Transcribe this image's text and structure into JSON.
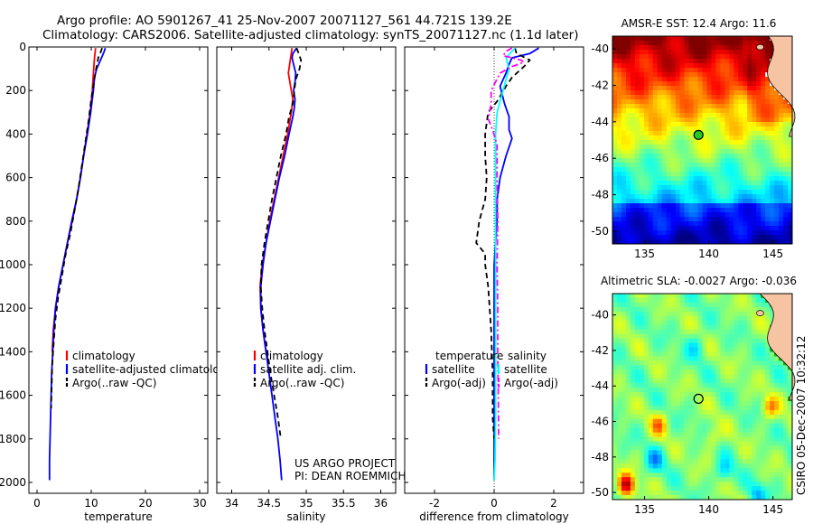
{
  "header": {
    "line1": "Argo profile: AO 5901267_41 25-Nov-2007 20071127_561 44.721S 139.2E",
    "line2": "Climatology: CARS2006. Satellite-adjusted climatology: synTS_20071127.nc (1.1d later)"
  },
  "credit": {
    "project": "US ARGO PROJECT",
    "pi": "PI: DEAN ROEMMICH",
    "stamp": "CSIRO 05-Dec-2007 10:32:12"
  },
  "colors": {
    "climatology": "#ff0000",
    "satellite": "#0000ff",
    "argo": "#000000",
    "temp_diff": "#0000ff",
    "sal_diff": "#00ffff",
    "sal_argo": "#ff00ff"
  },
  "chart_data": [
    {
      "id": "temperature",
      "type": "line",
      "xlabel": "temperature",
      "xlim": [
        -1.5,
        31.5
      ],
      "ylim": [
        2050,
        0
      ],
      "xticks": [
        0,
        10,
        20,
        30
      ],
      "xtick_labels": [
        "0",
        "10",
        "20",
        "30"
      ],
      "yticks": [
        0,
        200,
        400,
        600,
        800,
        1000,
        1200,
        1400,
        1600,
        1800,
        2000
      ],
      "ytick_labels": [
        "0",
        "200",
        "400",
        "600",
        "800",
        "1000",
        "1200",
        "1400",
        "1600",
        "1800",
        "2000"
      ],
      "legend": [
        "climatology",
        "satellite-adjusted climatology",
        "Argo(..raw -QC)"
      ],
      "series": [
        {
          "name": "climatology",
          "style": "solid",
          "points": [
            [
              10.8,
              5
            ],
            [
              10.6,
              50
            ],
            [
              10.4,
              120
            ],
            [
              10.2,
              200
            ],
            [
              9.8,
              300
            ],
            [
              9.2,
              400
            ],
            [
              8.6,
              500
            ],
            [
              8.0,
              600
            ],
            [
              7.3,
              700
            ],
            [
              6.5,
              800
            ],
            [
              5.6,
              900
            ],
            [
              4.8,
              1000
            ],
            [
              4.0,
              1100
            ],
            [
              3.4,
              1200
            ],
            [
              3.0,
              1300
            ],
            [
              2.8,
              1400
            ]
          ]
        },
        {
          "name": "satellite-adjusted climatology",
          "style": "solid",
          "points": [
            [
              12.6,
              5
            ],
            [
              12.4,
              20
            ],
            [
              11.9,
              50
            ],
            [
              11.0,
              100
            ],
            [
              10.6,
              140
            ],
            [
              10.4,
              200
            ],
            [
              9.9,
              300
            ],
            [
              9.3,
              400
            ],
            [
              8.6,
              500
            ],
            [
              8.0,
              600
            ],
            [
              7.3,
              700
            ],
            [
              6.4,
              800
            ],
            [
              5.6,
              900
            ],
            [
              4.8,
              1000
            ],
            [
              4.0,
              1100
            ],
            [
              3.4,
              1200
            ],
            [
              3.1,
              1300
            ],
            [
              2.9,
              1400
            ],
            [
              2.7,
              1500
            ],
            [
              2.6,
              1600
            ],
            [
              2.5,
              1700
            ],
            [
              2.4,
              1800
            ],
            [
              2.3,
              1900
            ],
            [
              2.3,
              1990
            ]
          ]
        },
        {
          "name": "Argo(..raw -QC)",
          "style": "dash",
          "points": [
            [
              12.0,
              5
            ],
            [
              11.8,
              20
            ],
            [
              11.3,
              50
            ],
            [
              10.9,
              100
            ],
            [
              10.5,
              160
            ],
            [
              10.0,
              240
            ],
            [
              9.5,
              340
            ],
            [
              8.9,
              440
            ],
            [
              8.3,
              540
            ],
            [
              7.7,
              640
            ],
            [
              7.0,
              740
            ],
            [
              6.2,
              850
            ],
            [
              5.3,
              950
            ],
            [
              4.6,
              1050
            ],
            [
              3.9,
              1150
            ],
            [
              3.4,
              1250
            ],
            [
              3.1,
              1350
            ],
            [
              2.8,
              1460
            ],
            [
              2.7,
              1560
            ],
            [
              2.6,
              1660
            ]
          ]
        }
      ]
    },
    {
      "id": "salinity",
      "type": "line",
      "xlabel": "salinity",
      "xlim": [
        33.8,
        36.2
      ],
      "ylim": [
        2050,
        0
      ],
      "xticks": [
        34,
        34.5,
        35,
        35.5,
        36
      ],
      "xtick_labels": [
        "34",
        "34.5",
        "35",
        "35.5",
        "36"
      ],
      "legend": [
        "climatology",
        "satellite adj. clim.",
        "Argo(..raw -QC)"
      ],
      "series": [
        {
          "name": "climatology",
          "style": "solid",
          "points": [
            [
              34.81,
              5
            ],
            [
              34.79,
              50
            ],
            [
              34.76,
              120
            ],
            [
              34.8,
              200
            ],
            [
              34.82,
              240
            ],
            [
              34.8,
              300
            ],
            [
              34.75,
              400
            ],
            [
              34.69,
              500
            ],
            [
              34.63,
              600
            ],
            [
              34.57,
              700
            ],
            [
              34.51,
              800
            ],
            [
              34.46,
              900
            ],
            [
              34.41,
              1000
            ],
            [
              34.38,
              1100
            ],
            [
              34.39,
              1200
            ],
            [
              34.42,
              1300
            ],
            [
              34.46,
              1400
            ]
          ]
        },
        {
          "name": "satellite adj. clim.",
          "style": "solid",
          "points": [
            [
              34.87,
              5
            ],
            [
              34.82,
              30
            ],
            [
              34.81,
              50
            ],
            [
              34.83,
              80
            ],
            [
              34.86,
              120
            ],
            [
              34.85,
              160
            ],
            [
              34.83,
              200
            ],
            [
              34.85,
              240
            ],
            [
              34.84,
              280
            ],
            [
              34.82,
              320
            ],
            [
              34.77,
              400
            ],
            [
              34.71,
              500
            ],
            [
              34.64,
              600
            ],
            [
              34.58,
              700
            ],
            [
              34.52,
              800
            ],
            [
              34.46,
              900
            ],
            [
              34.42,
              1000
            ],
            [
              34.39,
              1100
            ],
            [
              34.39,
              1200
            ],
            [
              34.42,
              1300
            ],
            [
              34.46,
              1400
            ],
            [
              34.5,
              1500
            ],
            [
              34.54,
              1600
            ],
            [
              34.58,
              1700
            ],
            [
              34.62,
              1800
            ],
            [
              34.65,
              1900
            ],
            [
              34.67,
              1990
            ]
          ]
        },
        {
          "name": "Argo(..raw -QC)",
          "style": "dash",
          "points": [
            [
              34.87,
              5
            ],
            [
              34.9,
              30
            ],
            [
              34.93,
              60
            ],
            [
              34.91,
              100
            ],
            [
              34.86,
              150
            ],
            [
              34.84,
              200
            ],
            [
              34.82,
              260
            ],
            [
              34.77,
              320
            ],
            [
              34.73,
              400
            ],
            [
              34.66,
              500
            ],
            [
              34.6,
              600
            ],
            [
              34.54,
              700
            ],
            [
              34.49,
              800
            ],
            [
              34.44,
              900
            ],
            [
              34.4,
              1000
            ],
            [
              34.39,
              1100
            ],
            [
              34.41,
              1200
            ],
            [
              34.44,
              1300
            ],
            [
              34.48,
              1400
            ],
            [
              34.52,
              1500
            ],
            [
              34.57,
              1600
            ],
            [
              34.62,
              1700
            ],
            [
              34.66,
              1800
            ]
          ]
        }
      ]
    },
    {
      "id": "difference",
      "type": "line",
      "xlabel": "difference from climatology",
      "xlim": [
        -3,
        3
      ],
      "ylim": [
        2050,
        0
      ],
      "xticks": [
        -2,
        0,
        2
      ],
      "xtick_labels": [
        "-2",
        "0",
        "2"
      ],
      "legend": {
        "temperature_heading": "temperature",
        "salinity_heading": "salinity",
        "temp_entries": [
          "satellite",
          "Argo(-adj)"
        ],
        "sal_entries": [
          "satellite",
          "Argo(-adj)"
        ]
      },
      "series": [
        {
          "name": "temperature satellite",
          "style": "solid",
          "points": [
            [
              1.5,
              5
            ],
            [
              1.2,
              30
            ],
            [
              0.6,
              50
            ],
            [
              0.5,
              80
            ],
            [
              0.4,
              120
            ],
            [
              0.2,
              180
            ],
            [
              0.35,
              260
            ],
            [
              0.5,
              320
            ],
            [
              0.5,
              380
            ],
            [
              0.6,
              420
            ],
            [
              0.4,
              500
            ],
            [
              0.2,
              600
            ],
            [
              0.1,
              700
            ],
            [
              0.1,
              800
            ],
            [
              0.05,
              900
            ],
            [
              0.0,
              1000
            ],
            [
              0.0,
              1100
            ],
            [
              0.0,
              1200
            ],
            [
              0.0,
              1400
            ],
            [
              0.0,
              1600
            ],
            [
              0.0,
              1800
            ],
            [
              0.0,
              1990
            ]
          ]
        },
        {
          "name": "temperature Argo(-adj)",
          "style": "dash",
          "points": [
            [
              0.7,
              5
            ],
            [
              0.75,
              30
            ],
            [
              1.2,
              60
            ],
            [
              1.0,
              90
            ],
            [
              0.6,
              140
            ],
            [
              0.4,
              180
            ],
            [
              0.1,
              250
            ],
            [
              -0.2,
              300
            ],
            [
              -0.3,
              400
            ],
            [
              -0.3,
              500
            ],
            [
              -0.25,
              600
            ],
            [
              -0.3,
              700
            ],
            [
              -0.5,
              800
            ],
            [
              -0.6,
              900
            ],
            [
              -0.3,
              950
            ],
            [
              -0.3,
              1000
            ],
            [
              -0.2,
              1100
            ],
            [
              -0.1,
              1300
            ],
            [
              -0.05,
              1500
            ],
            [
              -0.05,
              1700
            ],
            [
              0.0,
              1800
            ]
          ]
        },
        {
          "name": "salinity satellite",
          "style": "solid",
          "points": [
            [
              0.7,
              5
            ],
            [
              0.4,
              50
            ],
            [
              0.5,
              100
            ],
            [
              0.4,
              150
            ],
            [
              0.3,
              200
            ],
            [
              0.2,
              250
            ],
            [
              0.1,
              300
            ],
            [
              0.05,
              400
            ],
            [
              0.05,
              500
            ],
            [
              0.05,
              700
            ],
            [
              0.05,
              900
            ],
            [
              0.05,
              1100
            ],
            [
              0.05,
              1300
            ],
            [
              0.05,
              1500
            ],
            [
              0.05,
              1700
            ],
            [
              0.03,
              1900
            ],
            [
              0.0,
              1990
            ]
          ]
        },
        {
          "name": "salinity Argo(-adj)",
          "style": "dashdot",
          "points": [
            [
              0.6,
              5
            ],
            [
              0.4,
              20
            ],
            [
              0.3,
              40
            ],
            [
              0.9,
              60
            ],
            [
              1.0,
              70
            ],
            [
              0.6,
              90
            ],
            [
              0.2,
              120
            ],
            [
              -0.1,
              200
            ],
            [
              -0.1,
              260
            ],
            [
              -0.15,
              300
            ],
            [
              -0.2,
              330
            ],
            [
              -0.05,
              380
            ],
            [
              0.1,
              450
            ],
            [
              0.1,
              600
            ],
            [
              0.12,
              800
            ],
            [
              0.1,
              1000
            ],
            [
              0.12,
              1200
            ],
            [
              0.12,
              1400
            ],
            [
              0.14,
              1600
            ],
            [
              0.15,
              1800
            ]
          ]
        }
      ]
    },
    {
      "id": "sst_map",
      "type": "heatmap",
      "title": "AMSR-E SST: 12.4 Argo: 11.6",
      "xlim": [
        132.5,
        146.5
      ],
      "ylim": [
        -50.7,
        -39.3
      ],
      "xticks": [
        135,
        140,
        145
      ],
      "xtick_labels": [
        "135",
        "140",
        "145"
      ],
      "yticks": [
        -40,
        -42,
        -44,
        -46,
        -48,
        -50
      ],
      "ytick_labels": [
        "-40",
        "-42",
        "-44",
        "-46",
        "-48",
        "-50"
      ],
      "marker": {
        "lon": 139.2,
        "lat": -44.72
      }
    },
    {
      "id": "sla_map",
      "type": "heatmap",
      "title": "Altimetric SLA: -0.0027 Argo: -0.036",
      "xlim": [
        132.5,
        146.5
      ],
      "ylim": [
        -50.4,
        -38.8
      ],
      "xticks": [
        135,
        140,
        145
      ],
      "xtick_labels": [
        "135",
        "140",
        "145"
      ],
      "yticks": [
        -40,
        -42,
        -44,
        -46,
        -48,
        -50
      ],
      "ytick_labels": [
        "-40",
        "-42",
        "-44",
        "-46",
        "-48",
        "-50"
      ],
      "marker": {
        "lon": 139.2,
        "lat": -44.72
      }
    }
  ]
}
